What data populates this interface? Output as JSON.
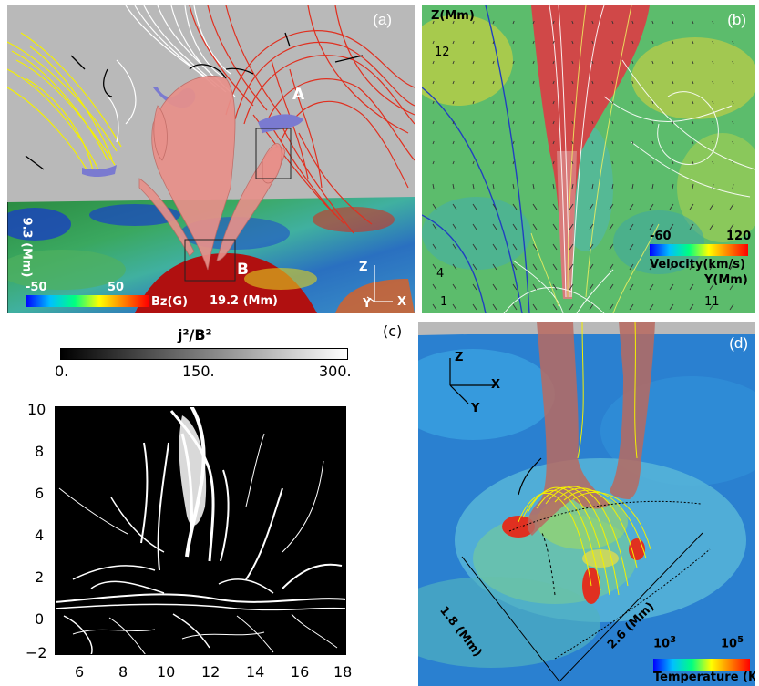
{
  "panels": {
    "a": {
      "label": "(a)",
      "box_a": "A",
      "box_b": "B",
      "depth_label": "9.3 (Mm)",
      "width_label": "19.2 (Mm)",
      "axis_z": "Z",
      "axis_x": "X",
      "axis_y": "Y",
      "colorbar": {
        "min": "-50",
        "max": "50",
        "unit": "Bz(G)"
      }
    },
    "b": {
      "label": "(b)",
      "z_axis_title": "Z(Mm)",
      "z_tick_top": "12",
      "z_tick_mid": "4",
      "y_tick_left": "1",
      "y_tick_right": "11",
      "y_axis_title": "Y(Mm)",
      "colorbar": {
        "min": "-60",
        "max": "120",
        "unit": "Velocity(km/s)"
      }
    },
    "c": {
      "label": "(c)",
      "colorbar_title": "j²/B²",
      "colorbar_ticks": [
        "0.",
        "150.",
        "300."
      ],
      "y_ticks": [
        "10",
        "8",
        "6",
        "4",
        "2",
        "0",
        "−2"
      ],
      "x_ticks": [
        "6",
        "8",
        "10",
        "12",
        "14",
        "16",
        "18"
      ]
    },
    "d": {
      "label": "(d)",
      "axis_z": "Z",
      "axis_x": "X",
      "axis_y": "Y",
      "len_a": "1.8 (Mm)",
      "len_b": "2.6 (Mm)",
      "colorbar": {
        "min_base": "10",
        "min_exp": "3",
        "max_base": "10",
        "max_exp": "5",
        "unit": "Temperature (K)"
      }
    }
  },
  "colors": {
    "red_field": "#e03020",
    "white_field": "#ffffff",
    "yellow_field": "#f4f000",
    "flux_tube": "#e8908a",
    "purple": "#7a7ad0"
  }
}
